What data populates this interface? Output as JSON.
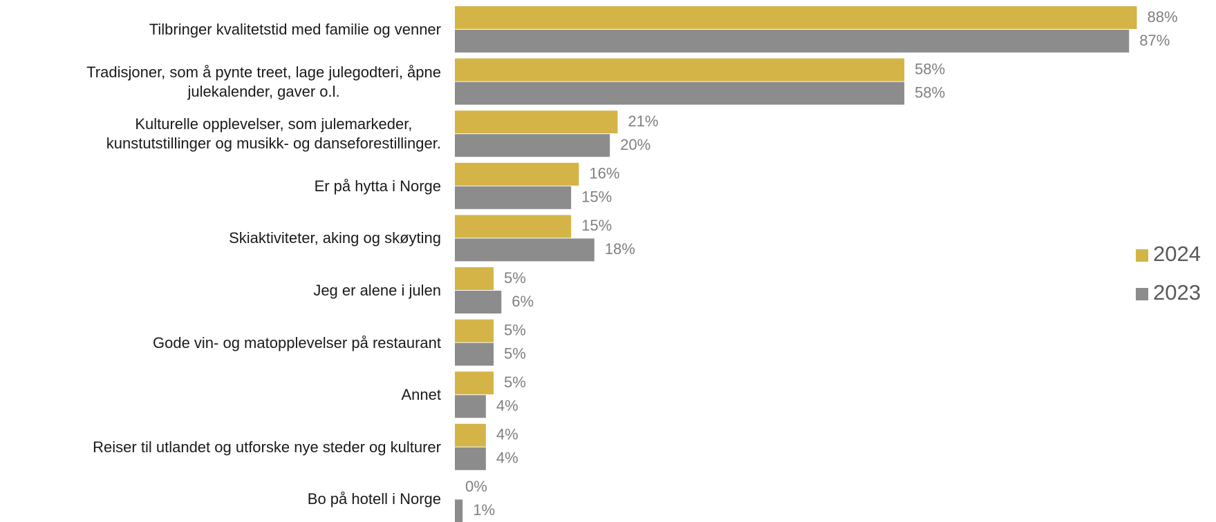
{
  "chart_data": {
    "type": "bar",
    "orientation": "horizontal",
    "categories": [
      "Tilbringer kvalitetstid med familie og venner",
      "Tradisjoner, som å pynte treet, lage julegodteri, åpne\njulekalender, gaver o.l.",
      "Kulturelle opplevelser, som julemarkeder,\nkunstutstillinger og musikk- og danseforestillinger.",
      "Er på hytta i Norge",
      "Skiaktiviteter, aking og skøyting",
      "Jeg er alene i julen",
      "Gode vin- og matopplevelser på restaurant",
      "Annet",
      "Reiser til utlandet og utforske nye steder og kulturer",
      "Bo på hotell i Norge"
    ],
    "series": [
      {
        "name": "2024",
        "color": "#d4b446",
        "values": [
          88,
          58,
          21,
          16,
          15,
          5,
          5,
          5,
          4,
          0
        ],
        "value_labels": [
          "88%",
          "58%",
          "21%",
          "16%",
          "15%",
          "5%",
          "5%",
          "5%",
          "4%",
          "0%"
        ]
      },
      {
        "name": "2023",
        "color": "#8c8c8c",
        "values": [
          87,
          58,
          20,
          15,
          18,
          6,
          5,
          4,
          4,
          1
        ],
        "value_labels": [
          "87%",
          "58%",
          "20%",
          "15%",
          "18%",
          "6%",
          "5%",
          "4%",
          "4%",
          "1%"
        ]
      }
    ],
    "xlim": [
      0,
      100
    ],
    "legend": "right"
  }
}
